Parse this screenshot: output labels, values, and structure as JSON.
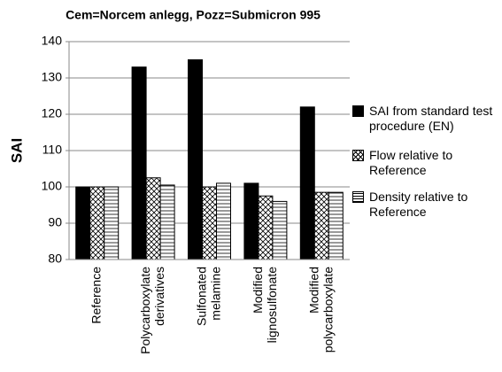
{
  "chart_data": {
    "type": "bar",
    "title": "Cem=Norcem anlegg, Pozz=Submicron 995",
    "y_label": "SAI",
    "categories": [
      "Reference",
      "Polycarboxylate derivatives",
      "Sulfonated melamine",
      "Modified lignosulfonate",
      "Modified polycarboxylate"
    ],
    "series": [
      {
        "name": "SAI from standard test procedure (EN)",
        "color": "#000000",
        "pattern": "solid",
        "values": [
          100,
          133,
          135,
          101,
          122
        ]
      },
      {
        "name": "Flow relative to Reference",
        "color": "#000000",
        "pattern": "crosshatch",
        "values": [
          100,
          102.5,
          100,
          97.5,
          98.5
        ]
      },
      {
        "name": "Density relative to Reference",
        "color": "#000000",
        "pattern": "horizontal",
        "values": [
          100,
          100.5,
          101,
          96,
          98.5
        ]
      }
    ],
    "ylim": [
      80,
      140
    ],
    "yticks": [
      80,
      90,
      100,
      110,
      120,
      130,
      140
    ],
    "grid": true
  }
}
